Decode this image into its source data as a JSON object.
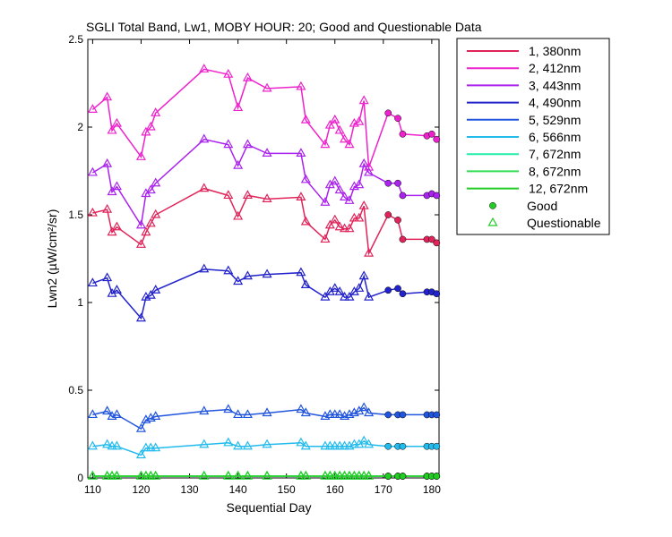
{
  "chart_data": {
    "type": "line",
    "title": "SGLI Total Band, Lw1, MOBY HOUR: 20;  Good and Questionable Data",
    "xlabel": "Sequential Day",
    "ylabel": "Lwn2 (µW/cm²/sr)",
    "xlim": [
      109,
      181.5
    ],
    "ylim": [
      0,
      2.5
    ],
    "xticks": [
      110,
      120,
      130,
      140,
      150,
      160,
      170,
      180
    ],
    "yticks": [
      0,
      0.5,
      1,
      1.5,
      2,
      2.5
    ],
    "ytick_labels": [
      "0",
      "0.5",
      "1",
      "1.5",
      "2",
      "2.5"
    ],
    "grid": false,
    "legend_position": "outside-right",
    "marker_legend": [
      {
        "label": "Good",
        "marker": "circle",
        "color": "#22cc22"
      },
      {
        "label": "Questionable",
        "marker": "triangle",
        "color": "#22cc22"
      }
    ],
    "x": [
      110,
      113,
      114,
      115,
      120,
      121,
      122,
      123,
      133,
      138,
      140,
      142,
      146,
      153,
      154,
      158,
      159,
      160,
      161,
      162,
      163,
      164,
      165,
      166,
      167,
      171,
      173,
      174,
      179,
      180,
      181
    ],
    "good_from_index": 25,
    "series": [
      {
        "name": "1, 380nm",
        "color": "#e0245a",
        "values": [
          1.51,
          1.53,
          1.4,
          1.43,
          1.33,
          1.4,
          1.45,
          1.5,
          1.65,
          1.61,
          1.49,
          1.61,
          1.59,
          1.6,
          1.46,
          1.36,
          1.44,
          1.47,
          1.43,
          1.42,
          1.42,
          1.48,
          1.48,
          1.55,
          1.28,
          1.5,
          1.47,
          1.36,
          1.36,
          1.36,
          1.34
        ]
      },
      {
        "name": "2, 412nm",
        "color": "#ee22cc",
        "values": [
          2.1,
          2.17,
          1.98,
          2.02,
          1.83,
          1.97,
          2.0,
          2.08,
          2.33,
          2.3,
          2.11,
          2.28,
          2.22,
          2.23,
          2.04,
          1.9,
          2.01,
          2.04,
          1.98,
          1.93,
          1.9,
          2.02,
          2.03,
          2.15,
          1.77,
          2.08,
          2.05,
          1.96,
          1.95,
          1.96,
          1.93
        ]
      },
      {
        "name": "3, 443nm",
        "color": "#aa22ee",
        "values": [
          1.74,
          1.79,
          1.63,
          1.66,
          1.44,
          1.62,
          1.64,
          1.68,
          1.93,
          1.9,
          1.78,
          1.9,
          1.85,
          1.85,
          1.7,
          1.57,
          1.67,
          1.69,
          1.64,
          1.6,
          1.58,
          1.66,
          1.67,
          1.79,
          1.74,
          1.68,
          1.68,
          1.61,
          1.61,
          1.62,
          1.61
        ]
      },
      {
        "name": "4, 490nm",
        "color": "#2222cc",
        "values": [
          1.11,
          1.14,
          1.05,
          1.07,
          0.91,
          1.03,
          1.04,
          1.07,
          1.19,
          1.18,
          1.12,
          1.15,
          1.16,
          1.17,
          1.1,
          1.03,
          1.06,
          1.08,
          1.06,
          1.03,
          1.03,
          1.06,
          1.08,
          1.15,
          1.03,
          1.07,
          1.08,
          1.05,
          1.06,
          1.06,
          1.05
        ]
      },
      {
        "name": "5, 529nm",
        "color": "#2255dd",
        "values": [
          0.36,
          0.38,
          0.35,
          0.36,
          0.28,
          0.33,
          0.34,
          0.35,
          0.38,
          0.39,
          0.36,
          0.36,
          0.37,
          0.39,
          0.37,
          0.35,
          0.36,
          0.36,
          0.36,
          0.35,
          0.36,
          0.37,
          0.38,
          0.4,
          0.37,
          0.36,
          0.36,
          0.36,
          0.36,
          0.36,
          0.36
        ]
      },
      {
        "name": "6, 566nm",
        "color": "#22bbee",
        "values": [
          0.18,
          0.19,
          0.18,
          0.18,
          0.13,
          0.17,
          0.17,
          0.17,
          0.19,
          0.2,
          0.18,
          0.18,
          0.19,
          0.2,
          0.18,
          0.18,
          0.18,
          0.18,
          0.18,
          0.18,
          0.18,
          0.19,
          0.19,
          0.21,
          0.19,
          0.18,
          0.18,
          0.18,
          0.18,
          0.18,
          0.18
        ]
      },
      {
        "name": "7, 672nm",
        "color": "#22eeaa",
        "values": [
          0.01,
          0.01,
          0.01,
          0.01,
          0.01,
          0.01,
          0.01,
          0.01,
          0.01,
          0.01,
          0.01,
          0.01,
          0.01,
          0.01,
          0.01,
          0.01,
          0.01,
          0.01,
          0.01,
          0.01,
          0.01,
          0.01,
          0.01,
          0.01,
          0.01,
          0.01,
          0.01,
          0.01,
          0.01,
          0.01,
          0.01
        ]
      },
      {
        "name": "8, 672nm",
        "color": "#33dd55",
        "values": [
          0.01,
          0.01,
          0.01,
          0.01,
          0.01,
          0.01,
          0.01,
          0.01,
          0.01,
          0.01,
          0.01,
          0.01,
          0.01,
          0.01,
          0.01,
          0.01,
          0.01,
          0.01,
          0.01,
          0.01,
          0.01,
          0.01,
          0.01,
          0.01,
          0.01,
          0.01,
          0.01,
          0.01,
          0.01,
          0.01,
          0.01
        ]
      },
      {
        "name": "12, 672nm",
        "color": "#22cc22",
        "values": [
          0.01,
          0.01,
          0.01,
          0.01,
          0.01,
          0.01,
          0.01,
          0.01,
          0.01,
          0.01,
          0.01,
          0.01,
          0.01,
          0.01,
          0.01,
          0.01,
          0.01,
          0.01,
          0.01,
          0.01,
          0.01,
          0.01,
          0.01,
          0.01,
          0.01,
          0.01,
          0.01,
          0.01,
          0.01,
          0.01,
          0.01
        ]
      }
    ]
  }
}
